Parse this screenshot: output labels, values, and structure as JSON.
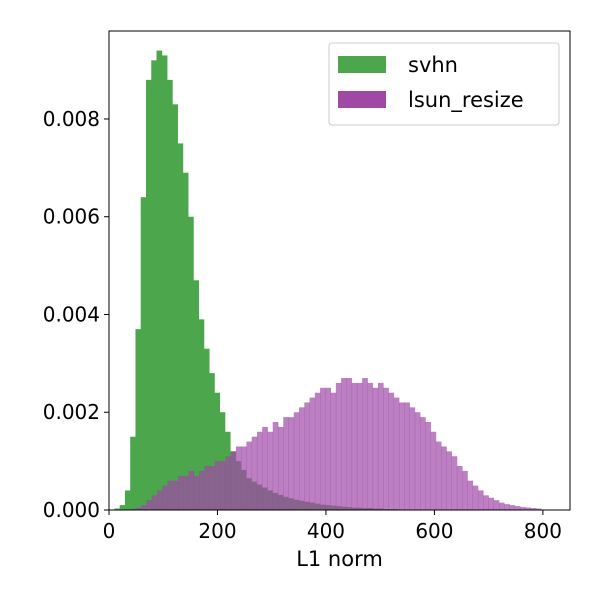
{
  "chart_data": {
    "type": "bar",
    "subtype": "overlaid-histogram",
    "title": "",
    "xlabel": "L1 norm",
    "ylabel": "",
    "xlim": [
      0,
      850
    ],
    "ylim": [
      0,
      0.0098
    ],
    "xticks": [
      "0",
      "200",
      "400",
      "600",
      "800"
    ],
    "yticks": [
      "0.000",
      "0.002",
      "0.004",
      "0.006",
      "0.008"
    ],
    "grid": false,
    "legend_position": "top-right",
    "series": [
      {
        "name": "svhn",
        "color": "#4CA64C",
        "x_start": 10,
        "bin_width": 9.7,
        "values": [
          3e-05,
          0.0001,
          0.0004,
          0.0015,
          0.0037,
          0.0064,
          0.0088,
          0.0092,
          0.0094,
          0.0093,
          0.0088,
          0.0083,
          0.0075,
          0.0069,
          0.006,
          0.0047,
          0.0039,
          0.0033,
          0.0028,
          0.0024,
          0.002,
          0.0016,
          0.0012,
          0.001,
          0.00082,
          0.00065,
          0.00058,
          0.00052,
          0.00046,
          0.0004,
          0.00035,
          0.00031,
          0.00027,
          0.00024,
          0.00021,
          0.00019,
          0.00017,
          0.00015,
          0.00013,
          0.00011,
          0.0001,
          9e-05,
          8e-05,
          7e-05,
          6e-05,
          5e-05,
          5e-05,
          4e-05,
          4e-05,
          3e-05,
          3e-05,
          2e-05,
          2e-05,
          2e-05,
          1e-05,
          1e-05,
          1e-05,
          1e-05,
          1e-05,
          1e-05,
          1e-05,
          1e-05,
          0.0,
          0.0,
          0.0,
          0.0,
          0.0,
          0.0,
          0.0,
          0.0,
          0.0,
          0.0,
          0.0,
          0.0,
          0.0,
          0.0,
          0.0,
          0.0
        ]
      },
      {
        "name": "lsun_resize",
        "color": "#A048A6",
        "x_start": 40,
        "bin_width": 9.7,
        "values": [
          2e-05,
          5e-05,
          0.0001,
          0.0002,
          0.0003,
          0.0004,
          0.0005,
          0.0006,
          0.0006,
          0.0007,
          0.0007,
          0.0008,
          0.0007,
          0.0008,
          0.0009,
          0.0009,
          0.001,
          0.001,
          0.0011,
          0.0012,
          0.0013,
          0.0013,
          0.0014,
          0.0015,
          0.0016,
          0.0017,
          0.0016,
          0.0018,
          0.0017,
          0.0019,
          0.0019,
          0.002,
          0.0021,
          0.0022,
          0.0023,
          0.0024,
          0.0025,
          0.0025,
          0.0024,
          0.0026,
          0.0027,
          0.0027,
          0.0026,
          0.0026,
          0.0027,
          0.0026,
          0.0025,
          0.0026,
          0.0025,
          0.0024,
          0.0023,
          0.0022,
          0.0022,
          0.0021,
          0.002,
          0.0019,
          0.0018,
          0.0016,
          0.0014,
          0.0013,
          0.0012,
          0.0011,
          0.0009,
          0.0008,
          0.0006,
          0.0005,
          0.0004,
          0.0003,
          0.00025,
          0.0002,
          0.00015,
          0.00012,
          0.0001,
          8e-05,
          6e-05,
          5e-05,
          4e-05,
          3e-05
        ]
      }
    ]
  }
}
